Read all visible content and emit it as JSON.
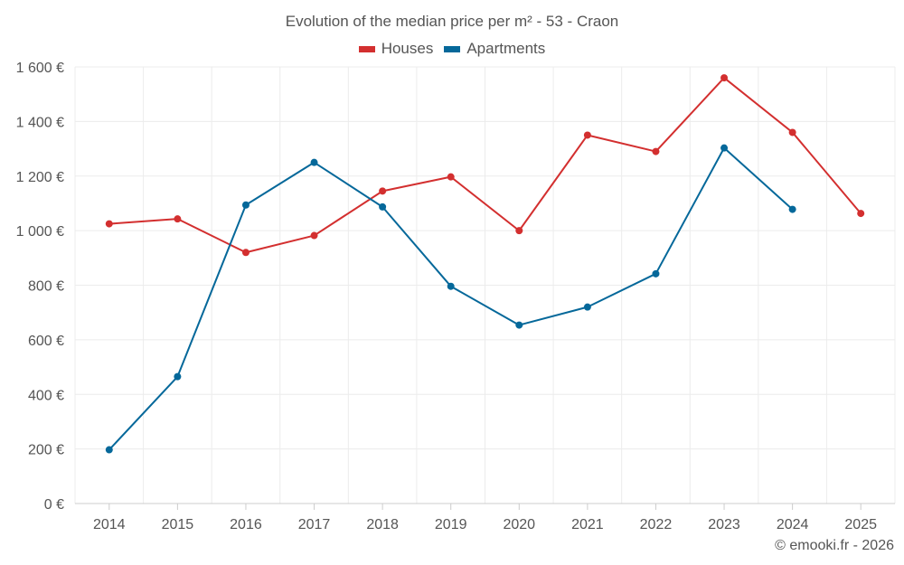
{
  "chart_data": {
    "type": "line",
    "title": "Evolution of the median price per m² - 53 - Craon",
    "xlabel": "",
    "ylabel": "",
    "x": [
      "2014",
      "2015",
      "2016",
      "2017",
      "2018",
      "2019",
      "2020",
      "2021",
      "2022",
      "2023",
      "2024",
      "2025"
    ],
    "ylim": [
      0,
      1600
    ],
    "yticks": [
      0,
      200,
      400,
      600,
      800,
      1000,
      1200,
      1400,
      1600
    ],
    "ytick_labels": [
      "0 €",
      "200 €",
      "400 €",
      "600 €",
      "800 €",
      "1 000 €",
      "1 200 €",
      "1 400 €",
      "1 600 €"
    ],
    "grid": true,
    "legend_position": "top-center",
    "series": [
      {
        "name": "Houses",
        "color": "#d32f2f",
        "values": [
          1025,
          1043,
          920,
          982,
          1145,
          1197,
          1000,
          1350,
          1290,
          1560,
          1360,
          1063
        ]
      },
      {
        "name": "Apartments",
        "color": "#05689a",
        "values": [
          197,
          465,
          1094,
          1250,
          1087,
          796,
          654,
          720,
          842,
          1303,
          1078,
          null
        ]
      }
    ]
  },
  "footer": {
    "credit": "© emooki.fr - 2026"
  }
}
